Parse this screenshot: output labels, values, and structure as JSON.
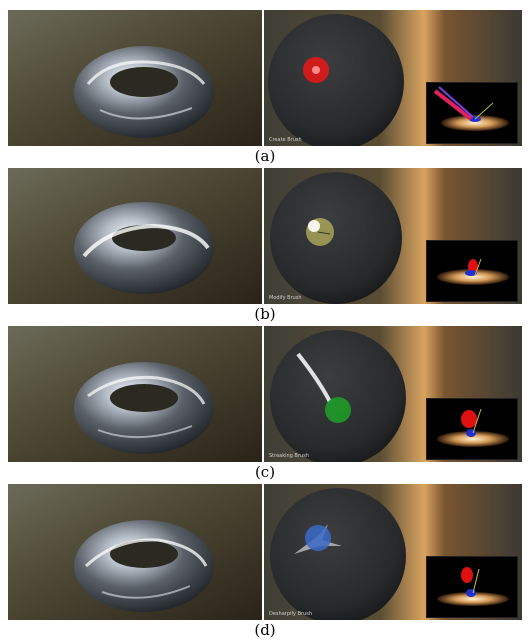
{
  "figure": {
    "panels": [
      {
        "caption": "(a)",
        "brush_label": "Create Brush",
        "brush_color": "#e01818",
        "brush": "create"
      },
      {
        "caption": "(b)",
        "brush_label": "Modify Brush",
        "brush_color": "#e8e06a",
        "brush": "modify"
      },
      {
        "caption": "(c)",
        "brush_label": "Streaking Brush",
        "brush_color": "#1e9a28",
        "brush": "streak"
      },
      {
        "caption": "(d)",
        "brush_label": "Desharpify Brush",
        "brush_color": "#3a6ac8",
        "brush": "desharpify"
      }
    ]
  }
}
